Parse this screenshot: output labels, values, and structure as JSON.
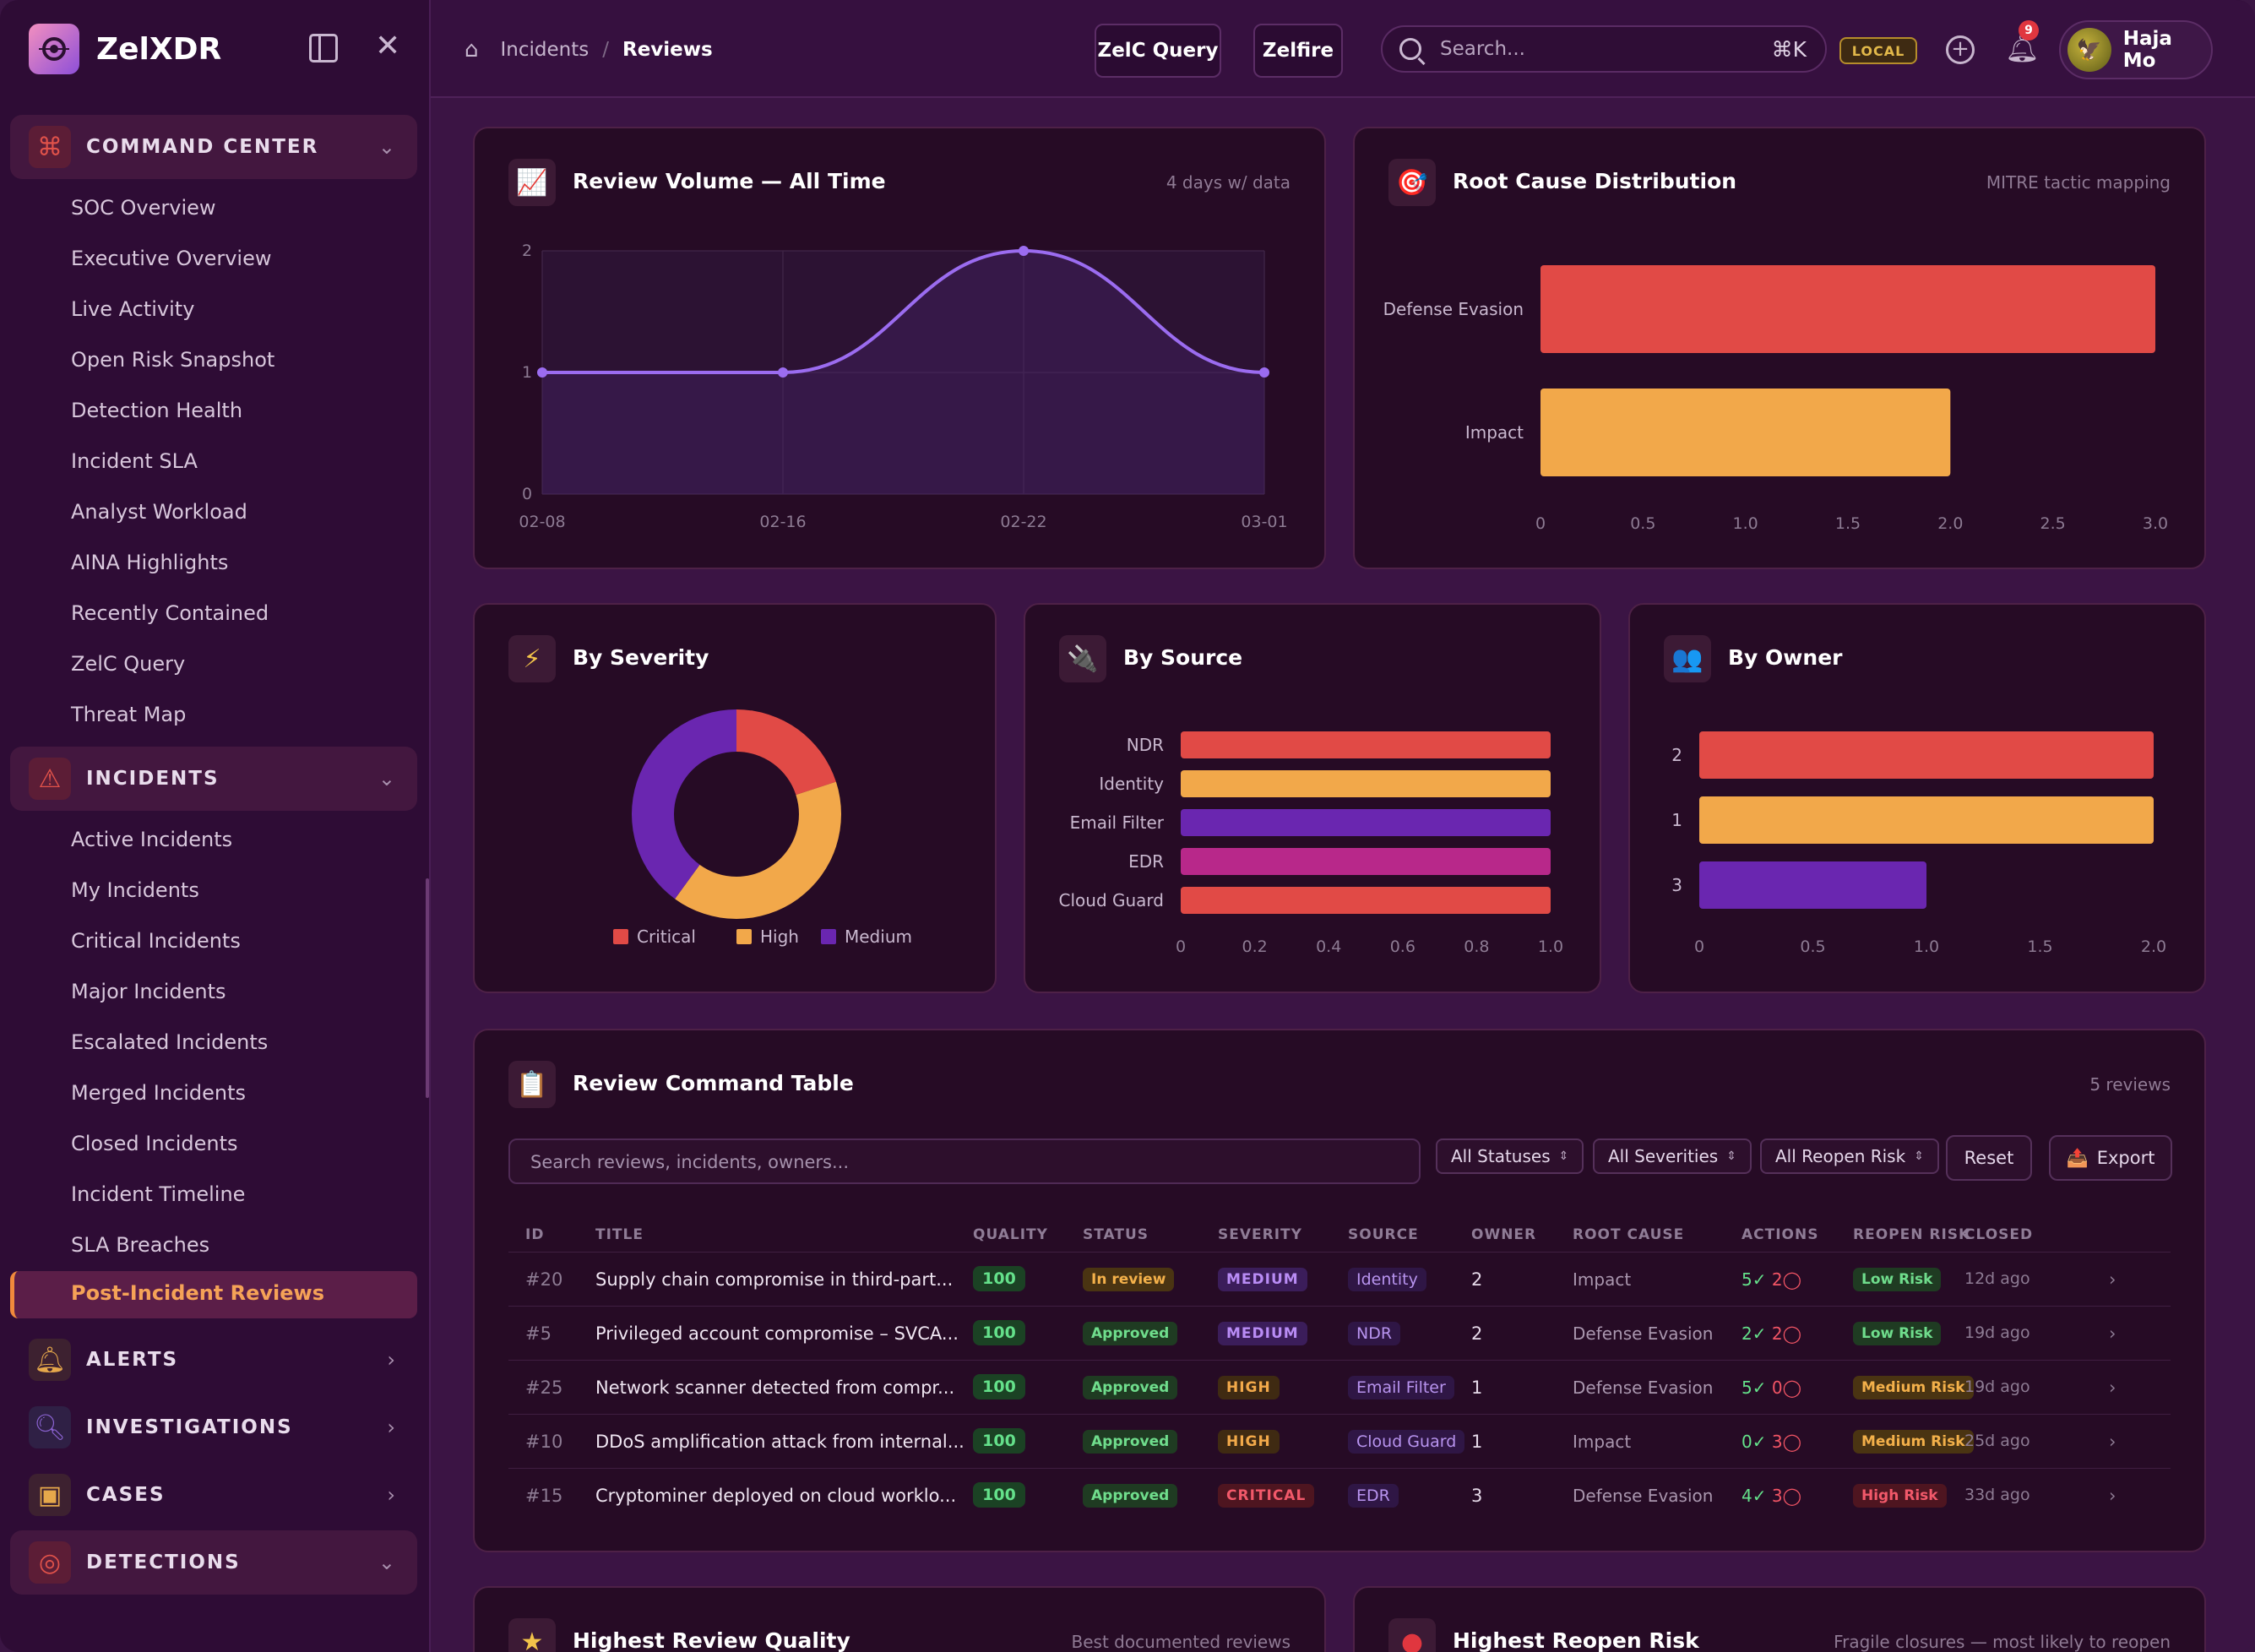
{
  "app": {
    "name": "ZelXDR"
  },
  "sidebar": {
    "sections": [
      {
        "label": "COMMAND CENTER",
        "icon": "command-icon",
        "color": "#e0524a"
      },
      {
        "label": "INCIDENTS",
        "icon": "warning-icon",
        "color": "#e0524a"
      },
      {
        "label": "ALERTS",
        "icon": "bell-icon",
        "color": "#e6a84b"
      },
      {
        "label": "INVESTIGATIONS",
        "icon": "search-icon",
        "color": "#8a62d0"
      },
      {
        "label": "CASES",
        "icon": "briefcase-icon",
        "color": "#e6a84b"
      },
      {
        "label": "DETECTIONS",
        "icon": "target-icon",
        "color": "#e0524a"
      }
    ],
    "command_center_items": [
      "SOC Overview",
      "Executive Overview",
      "Live Activity",
      "Open Risk Snapshot",
      "Detection Health",
      "Incident SLA",
      "Analyst Workload",
      "AINA Highlights",
      "Recently Contained",
      "ZelC Query",
      "Threat Map"
    ],
    "incident_items": [
      "Active Incidents",
      "My Incidents",
      "Critical Incidents",
      "Major Incidents",
      "Escalated Incidents",
      "Merged Incidents",
      "Closed Incidents",
      "Incident Timeline",
      "SLA Breaches"
    ],
    "active_item": "Post-Incident Reviews"
  },
  "header": {
    "breadcrumb": [
      "Incidents",
      "Reviews"
    ],
    "buttons": {
      "query": "ZelC Query",
      "zelfire": "Zelfire"
    },
    "search_placeholder": "Search...",
    "search_shortcut": "⌘K",
    "env_badge": "LOCAL",
    "notification_count": "9",
    "user_name": "Haja Mo"
  },
  "volume_card": {
    "title": "Review Volume — All Time",
    "subtitle": "4 days w/ data",
    "chart_data": {
      "type": "line",
      "x": [
        "02-08",
        "02-16",
        "02-22",
        "03-01"
      ],
      "values": [
        1,
        1,
        2,
        1
      ],
      "ylim": [
        0,
        2
      ],
      "yticks": [
        "0",
        "1",
        "2"
      ],
      "color": "#9b6cf0"
    }
  },
  "rootcause_card": {
    "title": "Root Cause Distribution",
    "subtitle": "MITRE tactic mapping",
    "chart_data": {
      "type": "bar",
      "orientation": "horizontal",
      "categories": [
        "Defense Evasion",
        "Impact"
      ],
      "values": [
        3,
        2
      ],
      "colors": [
        "#e14a46",
        "#f2a84a"
      ],
      "xlim": [
        0,
        3
      ],
      "xticks": [
        "0",
        "0.5",
        "1.0",
        "1.5",
        "2.0",
        "2.5",
        "3.0"
      ]
    }
  },
  "severity_card": {
    "title": "By Severity",
    "chart_data": {
      "type": "pie",
      "categories": [
        "Critical",
        "High",
        "Medium"
      ],
      "values": [
        1,
        2,
        2
      ],
      "colors": [
        "#e14a46",
        "#f2a84a",
        "#6a26b0"
      ]
    }
  },
  "source_card": {
    "title": "By Source",
    "chart_data": {
      "type": "bar",
      "orientation": "horizontal",
      "categories": [
        "NDR",
        "Identity",
        "Email Filter",
        "EDR",
        "Cloud Guard"
      ],
      "values": [
        1,
        1,
        1,
        1,
        1
      ],
      "colors": [
        "#e14a46",
        "#f2a84a",
        "#6a26b0",
        "#b8288a",
        "#e14a46"
      ],
      "xlim": [
        0,
        1
      ],
      "xticks": [
        "0",
        "0.2",
        "0.4",
        "0.6",
        "0.8",
        "1.0"
      ]
    }
  },
  "owner_card": {
    "title": "By Owner",
    "chart_data": {
      "type": "bar",
      "orientation": "horizontal",
      "categories": [
        "2",
        "1",
        "3"
      ],
      "values": [
        2,
        2,
        1
      ],
      "colors": [
        "#e14a46",
        "#f2a84a",
        "#6a26b0"
      ],
      "xlim": [
        0,
        2
      ],
      "xticks": [
        "0",
        "0.5",
        "1.0",
        "1.5",
        "2.0"
      ]
    }
  },
  "table": {
    "title": "Review Command Table",
    "count_label": "5 reviews",
    "search_placeholder": "Search reviews, incidents, owners...",
    "filters": [
      "All Statuses",
      "All Severities",
      "All Reopen Risk"
    ],
    "reset_label": "Reset",
    "export_label": "Export",
    "columns": [
      "ID",
      "TITLE",
      "QUALITY",
      "STATUS",
      "SEVERITY",
      "SOURCE",
      "OWNER",
      "ROOT CAUSE",
      "ACTIONS",
      "REOPEN RISK",
      "CLOSED"
    ],
    "rows": [
      {
        "id": "#20",
        "title": "Supply chain compromise in third-part...",
        "quality": "100",
        "status": "In review",
        "status_key": "review",
        "severity": "MEDIUM",
        "sev_key": "medium",
        "source": "Identity",
        "owner": "2",
        "root": "Impact",
        "ok": "5✓",
        "no": "2◯",
        "risk": "Low Risk",
        "risk_key": "low",
        "closed": "12d ago"
      },
      {
        "id": "#5",
        "title": "Privileged account compromise – SVCA...",
        "quality": "100",
        "status": "Approved",
        "status_key": "approved",
        "severity": "MEDIUM",
        "sev_key": "medium",
        "source": "NDR",
        "owner": "2",
        "root": "Defense Evasion",
        "ok": "2✓",
        "no": "2◯",
        "risk": "Low Risk",
        "risk_key": "low",
        "closed": "19d ago"
      },
      {
        "id": "#25",
        "title": "Network scanner detected from compr...",
        "quality": "100",
        "status": "Approved",
        "status_key": "approved",
        "severity": "HIGH",
        "sev_key": "high",
        "source": "Email Filter",
        "owner": "1",
        "root": "Defense Evasion",
        "ok": "5✓",
        "no": "0◯",
        "risk": "Medium Risk",
        "risk_key": "medium",
        "closed": "19d ago"
      },
      {
        "id": "#10",
        "title": "DDoS amplification attack from internal...",
        "quality": "100",
        "status": "Approved",
        "status_key": "approved",
        "severity": "HIGH",
        "sev_key": "high",
        "source": "Cloud Guard",
        "owner": "1",
        "root": "Impact",
        "ok": "0✓",
        "no": "3◯",
        "risk": "Medium Risk",
        "risk_key": "medium",
        "closed": "25d ago"
      },
      {
        "id": "#15",
        "title": "Cryptominer deployed on cloud worklo...",
        "quality": "100",
        "status": "Approved",
        "status_key": "approved",
        "severity": "CRITICAL",
        "sev_key": "critical",
        "source": "EDR",
        "owner": "3",
        "root": "Defense Evasion",
        "ok": "4✓",
        "no": "3◯",
        "risk": "High Risk",
        "risk_key": "high",
        "closed": "33d ago"
      }
    ]
  },
  "bottom_cards": [
    {
      "title": "Highest Review Quality",
      "subtitle": "Best documented reviews",
      "icon": "star-icon"
    },
    {
      "title": "Highest Reopen Risk",
      "subtitle": "Fragile closures — most likely to reopen",
      "icon": "red-circle-icon"
    }
  ]
}
